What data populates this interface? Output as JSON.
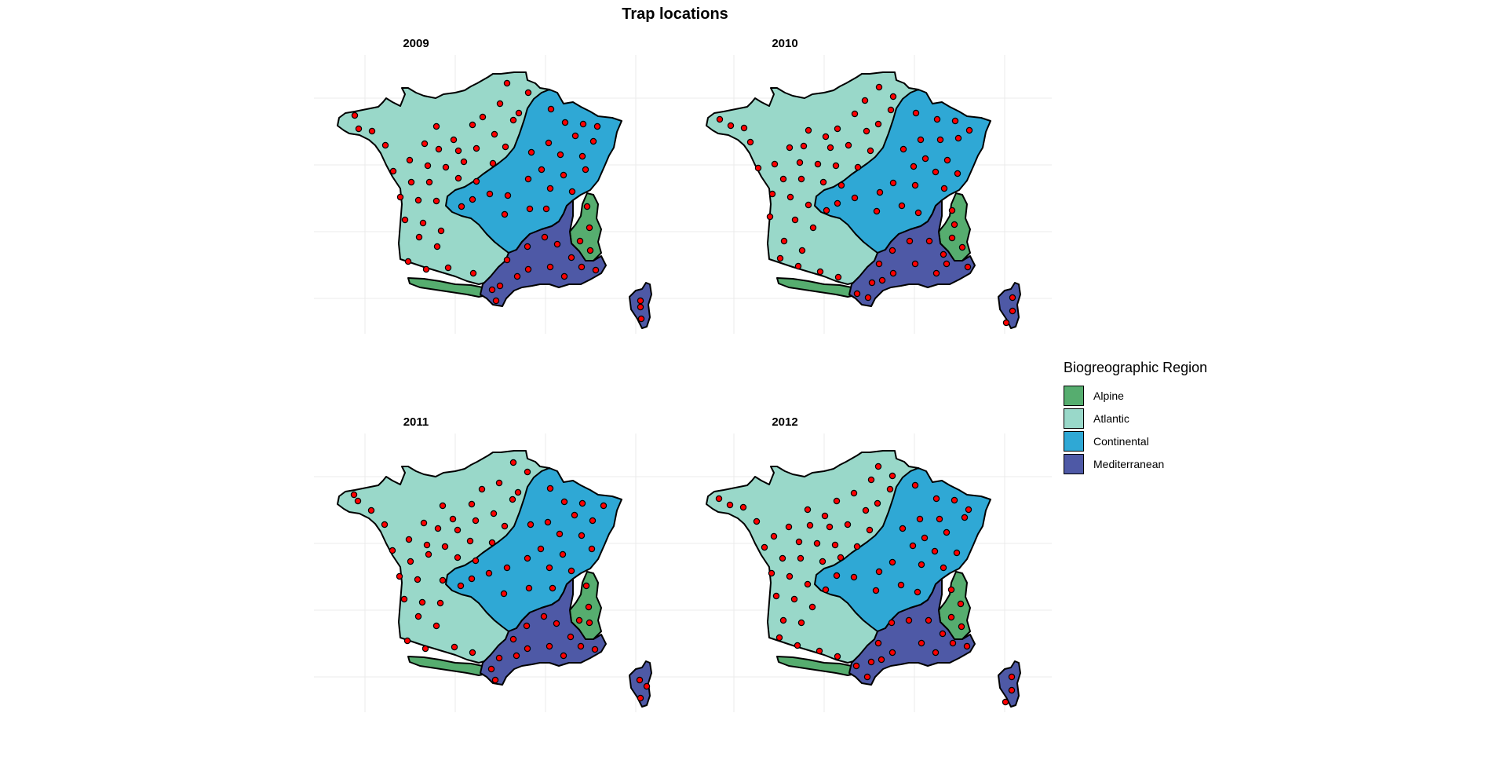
{
  "title": "Trap locations",
  "panels": [
    {
      "label": "2009"
    },
    {
      "label": "2010"
    },
    {
      "label": "2011"
    },
    {
      "label": "2012"
    }
  ],
  "legend": {
    "title": "Biogreographic Region",
    "items": [
      {
        "label": "Alpine",
        "color": "#56ad6f"
      },
      {
        "label": "Atlantic",
        "color": "#99d8c9"
      },
      {
        "label": "Continental",
        "color": "#2fa8d5"
      },
      {
        "label": "Mediterranean",
        "color": "#4e59a6"
      }
    ]
  },
  "style": {
    "trap_marker_color": "#ff0000",
    "border_color": "#000000",
    "grid_color": "#ebebeb"
  }
}
